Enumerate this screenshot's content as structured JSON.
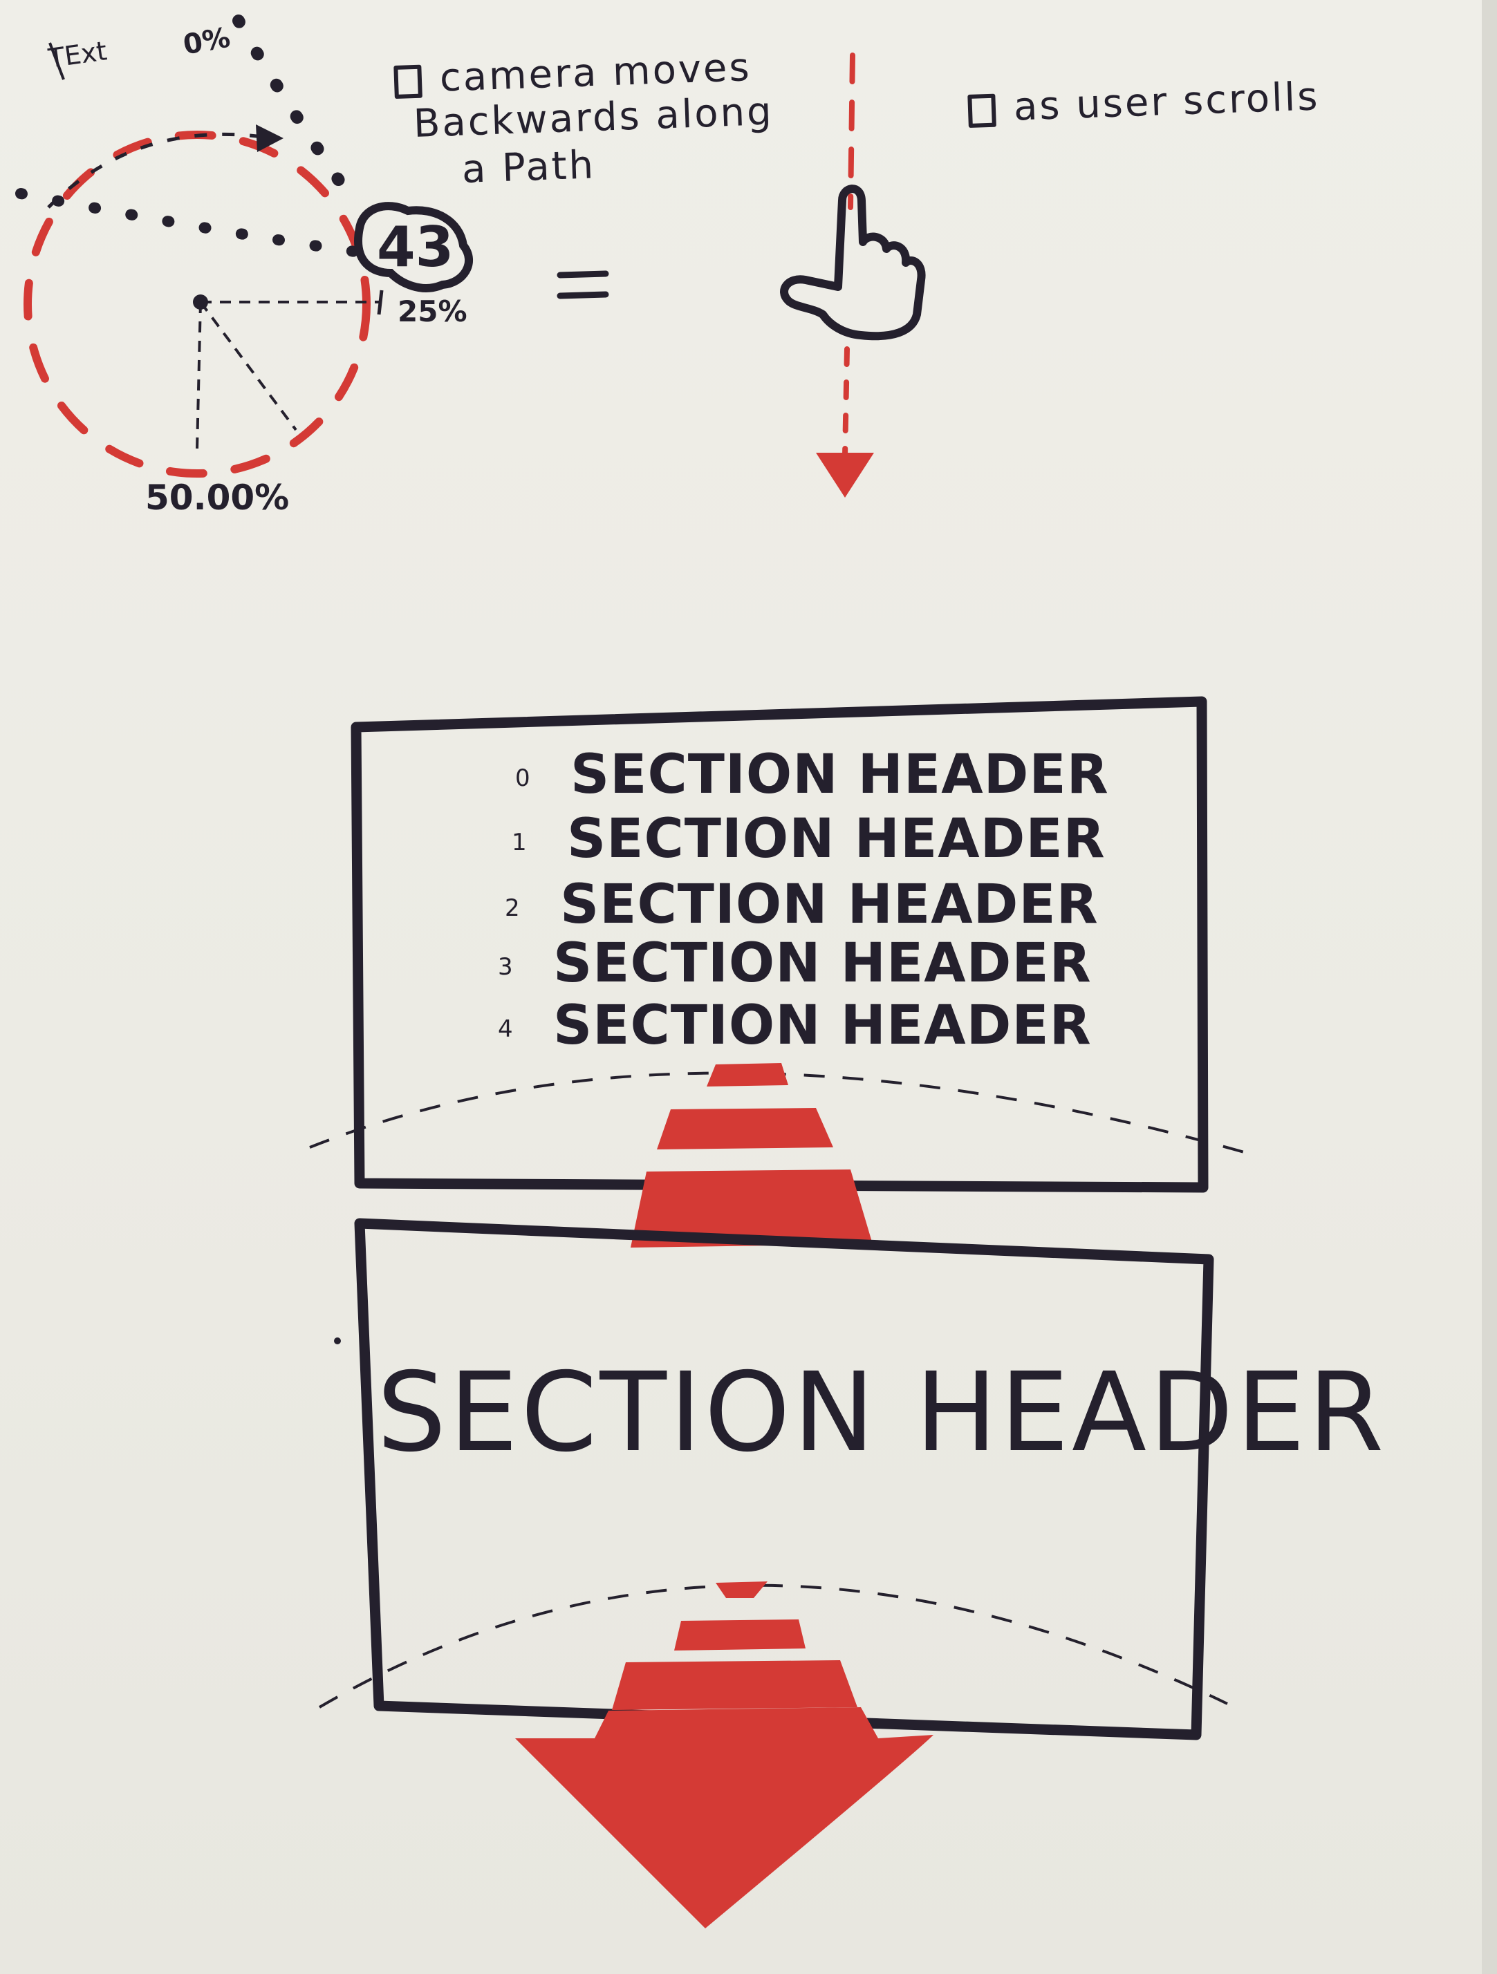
{
  "corner_label": "TExt",
  "path_labels": {
    "start": "0%",
    "quarter": "25%",
    "half": "50.00%"
  },
  "camera_badge": "43",
  "equals_sign": "=",
  "notes": {
    "camera": [
      "camera moves",
      "Backwards along",
      "a Path"
    ],
    "scroll": "as user scrolls"
  },
  "section_list": [
    {
      "index": "0",
      "label": "SECTION HEADER"
    },
    {
      "index": "1",
      "label": "SECTION HEADER"
    },
    {
      "index": "2",
      "label": "SECTION HEADER"
    },
    {
      "index": "3",
      "label": "SECTION HEADER"
    },
    {
      "index": "4",
      "label": "SECTION HEADER"
    }
  ],
  "big_section_header": "SECTION HEADER",
  "colors": {
    "ink": "#24202d",
    "red": "#d43a35",
    "paper": "#ecebe4"
  }
}
